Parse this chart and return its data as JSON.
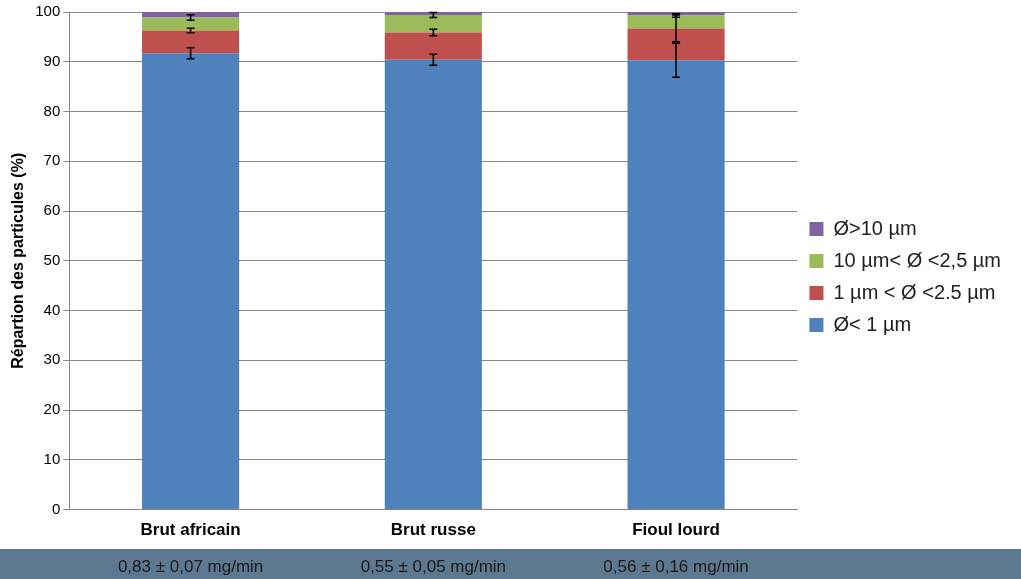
{
  "chart_data": {
    "type": "bar",
    "stacked": true,
    "ylabel": "Répartion des particules (%)",
    "categories": [
      "Brut africain",
      "Brut russe",
      "Fioul lourd"
    ],
    "series": [
      {
        "name": "Ø< 1 µm",
        "color": "#4f81bd",
        "values": [
          91.7,
          90.4,
          90.3
        ],
        "errors": [
          1.1,
          1.1,
          3.4
        ]
      },
      {
        "name": "1 µm < Ø <2.5 µm",
        "color": "#c0504d",
        "values": [
          4.6,
          5.5,
          6.4
        ],
        "errors": [
          0.45,
          0.65,
          2.7
        ]
      },
      {
        "name": "10 µm< Ø <2,5 µm",
        "color": "#9bbb59",
        "values": [
          2.6,
          3.5,
          2.6
        ],
        "errors": [
          0.55,
          0.5,
          0.35
        ]
      },
      {
        "name": "Ø>10 µm",
        "color": "#8064a2",
        "values": [
          1.1,
          0.6,
          0.7
        ]
      }
    ],
    "ylim": [
      0,
      100
    ],
    "yticks": [
      0,
      10,
      20,
      30,
      40,
      50,
      60,
      70,
      80,
      90,
      100
    ],
    "grid": "y",
    "legend": "right",
    "annotations": [
      "0,83 ± 0,07 mg/min",
      "0,55 ± 0,05 mg/min",
      "0,56 ± 0,16 mg/min"
    ]
  }
}
